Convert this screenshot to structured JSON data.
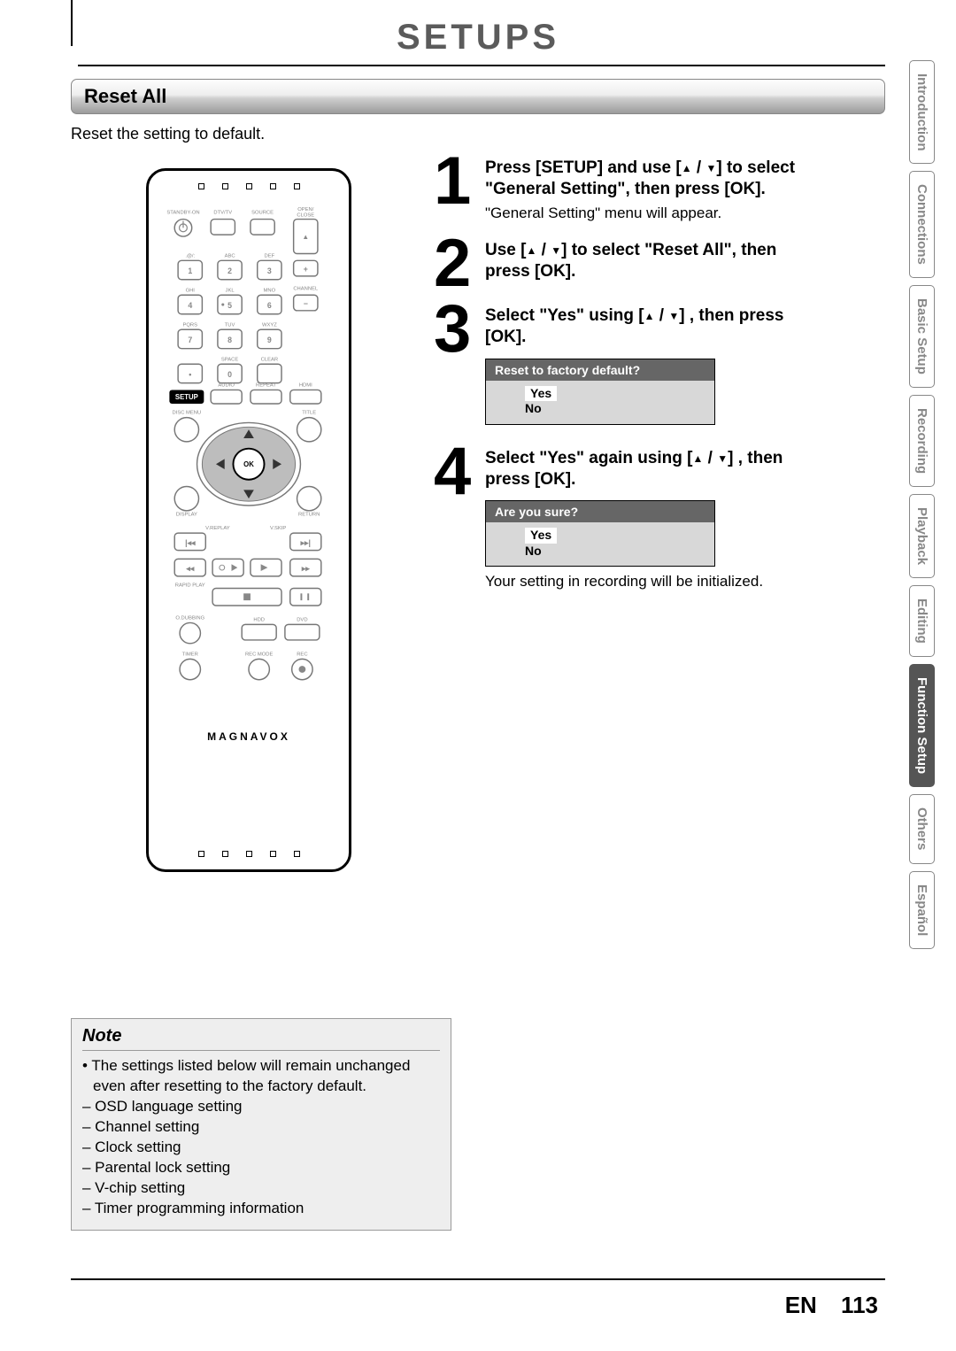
{
  "page": {
    "title": "SETUPS",
    "section": "Reset All",
    "intro": "Reset the setting to default.",
    "lang_code": "EN",
    "page_number": "113"
  },
  "remote": {
    "brand": "MAGNAVOX",
    "row1": [
      "STANDBY-ON",
      "DTV/TV",
      "SOURCE",
      "OPEN/\nCLOSE"
    ],
    "row_num1_top": [
      ".@/:",
      "ABC",
      "DEF"
    ],
    "row_num1": [
      "1",
      "2",
      "3"
    ],
    "row_num2_top": [
      "GHI",
      "JKL",
      "MNO"
    ],
    "row_num2": [
      "4",
      "5",
      "6"
    ],
    "row_num3_top": [
      "PQRS",
      "TUV",
      "WXYZ"
    ],
    "row_num3": [
      "7",
      "8",
      "9"
    ],
    "row_num4_top": [
      "",
      "SPACE",
      "CLEAR"
    ],
    "row_num4": [
      "•",
      "0",
      ""
    ],
    "plus": "+",
    "minus": "−",
    "channel": "CHANNEL",
    "setup": "SETUP",
    "audio": "AUDIO",
    "repeat": "REPEAT",
    "hdmi": "HDMI",
    "disc_menu": "DISC MENU",
    "title_btn": "TITLE",
    "ok": "OK",
    "display": "DISPLAY",
    "return": "RETURN",
    "vreplay": "V.REPLAY",
    "vskip": "V.SKIP",
    "rapid": "RAPID PLAY",
    "odub": "O.DUBBING",
    "hdd": "HDD",
    "dvd": "DVD",
    "timer": "TIMER",
    "recmode": "REC MODE",
    "rec": "REC"
  },
  "steps": [
    {
      "n": "1",
      "instr_parts": [
        "Press [SETUP] and use [",
        "▲",
        " / ",
        "▼",
        "] to select \"General Setting\", then press [OK]."
      ],
      "sub": "\"General Setting\" menu will appear."
    },
    {
      "n": "2",
      "instr_parts": [
        "Use [",
        "▲",
        " / ",
        "▼",
        "] to select \"Reset All\", then press [OK]."
      ]
    },
    {
      "n": "3",
      "instr_parts": [
        "Select \"Yes\" using [",
        "▲",
        " / ",
        "▼",
        "] , then press [OK]."
      ],
      "dialog": {
        "title": "Reset to factory default?",
        "options": [
          "Yes",
          "No"
        ],
        "selected": 0
      }
    },
    {
      "n": "4",
      "instr_parts": [
        "Select \"Yes\" again using [",
        "▲",
        " / ",
        "▼",
        "] , then press [OK]."
      ],
      "dialog": {
        "title": "Are you sure?",
        "options": [
          "Yes",
          "No"
        ],
        "selected": 0
      },
      "sub": "Your setting in recording will be initialized."
    }
  ],
  "note": {
    "title": "Note",
    "lead": "• The settings listed below will remain unchanged even after resetting to the factory default.",
    "items": [
      "– OSD language setting",
      "– Channel setting",
      "– Clock setting",
      "– Parental lock setting",
      "– V-chip setting",
      "– Timer programming information"
    ]
  },
  "tabs": [
    {
      "label": "Introduction",
      "active": false
    },
    {
      "label": "Connections",
      "active": false
    },
    {
      "label": "Basic Setup",
      "active": false
    },
    {
      "label": "Recording",
      "active": false
    },
    {
      "label": "Playback",
      "active": false
    },
    {
      "label": "Editing",
      "active": false
    },
    {
      "label": "Function Setup",
      "active": true
    },
    {
      "label": "Others",
      "active": false
    },
    {
      "label": "Español",
      "active": false
    }
  ],
  "style": {
    "accent_gray": "#666666",
    "banner_gradient": [
      "#fdfdfd",
      "#9b9b9b"
    ],
    "note_bg": "#eeeeee"
  }
}
